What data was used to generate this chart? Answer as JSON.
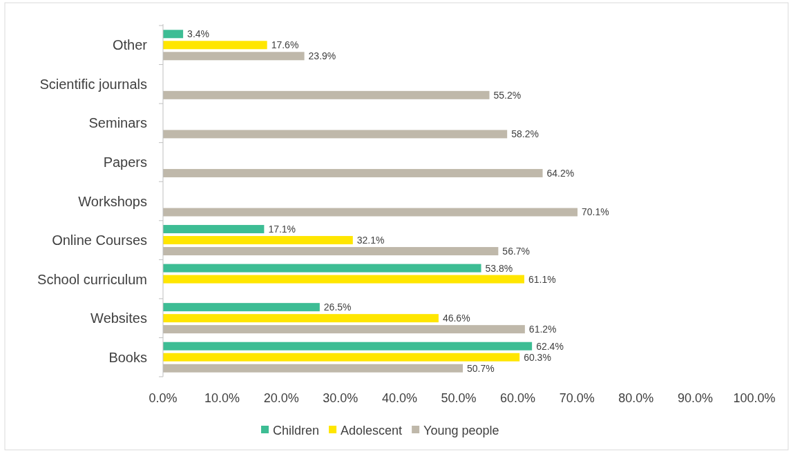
{
  "chart_data": {
    "type": "bar",
    "orientation": "horizontal",
    "categories": [
      "Other",
      "Scientific journals",
      "Seminars",
      "Papers",
      "Workshops",
      "Online Courses",
      "School curriculum",
      "Websites",
      "Books"
    ],
    "series": [
      {
        "name": "Children",
        "color": "#3dbd94",
        "values": [
          3.4,
          null,
          null,
          null,
          null,
          17.1,
          53.8,
          26.5,
          62.4
        ],
        "value_labels": [
          "3.4%",
          null,
          null,
          null,
          null,
          "17.1%",
          "53.8%",
          "26.5%",
          "62.4%"
        ]
      },
      {
        "name": "Adolescent",
        "color": "#ffe600",
        "values": [
          17.6,
          null,
          null,
          null,
          null,
          32.1,
          61.1,
          46.6,
          60.3
        ],
        "value_labels": [
          "17.6%",
          null,
          null,
          null,
          null,
          "32.1%",
          "61.1%",
          "46.6%",
          "60.3%"
        ]
      },
      {
        "name": "Young people",
        "color": "#bfb8aa",
        "values": [
          23.9,
          55.2,
          58.2,
          64.2,
          70.1,
          56.7,
          null,
          61.2,
          50.7
        ],
        "value_labels": [
          "23.9%",
          "55.2%",
          "58.2%",
          "64.2%",
          "70.1%",
          "56.7%",
          null,
          "61.2%",
          "50.7%"
        ]
      }
    ],
    "xlim": [
      0,
      100
    ],
    "xticks": [
      {
        "value": 0,
        "label": "0.0%"
      },
      {
        "value": 10,
        "label": "10.0%"
      },
      {
        "value": 20,
        "label": "20.0%"
      },
      {
        "value": 30,
        "label": "30.0%"
      },
      {
        "value": 40,
        "label": "40.0%"
      },
      {
        "value": 50,
        "label": "50.0%"
      },
      {
        "value": 60,
        "label": "60.0%"
      },
      {
        "value": 70,
        "label": "70.0%"
      },
      {
        "value": 80,
        "label": "80.0%"
      },
      {
        "value": 90,
        "label": "90.0%"
      },
      {
        "value": 100,
        "label": "100.0%"
      }
    ],
    "legend": "bottom"
  }
}
